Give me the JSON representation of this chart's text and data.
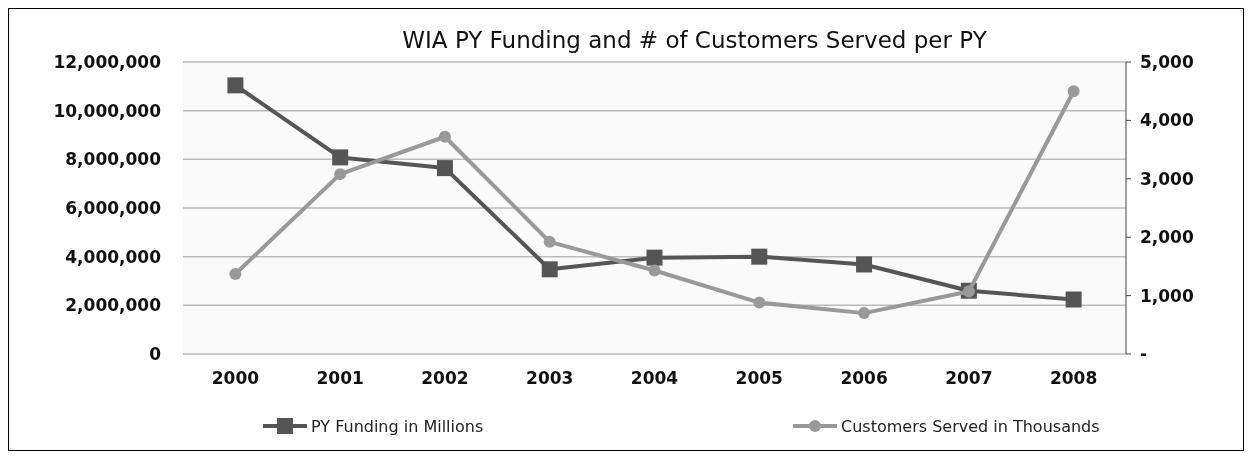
{
  "chart_data": {
    "type": "line",
    "title": "WIA PY Funding and # of Customers Served per PY",
    "categories": [
      "2000",
      "2001",
      "2002",
      "2003",
      "2004",
      "2005",
      "2006",
      "2007",
      "2008"
    ],
    "series": [
      {
        "name": "PY Funding in Millions",
        "color": "#555555",
        "marker": "square",
        "values": [
          11040000,
          8080000,
          7640000,
          3480000,
          3960000,
          4000000,
          3680000,
          2600000,
          2240000
        ]
      },
      {
        "name": "Customers Served in Thousands",
        "color": "#999999",
        "marker": "circle",
        "axis": "y2",
        "values": [
          1370,
          3080,
          3720,
          1920,
          1430,
          880,
          700,
          1070,
          4500
        ]
      }
    ],
    "ylim": [
      0,
      12000000
    ],
    "yticks": [
      {
        "value": 0,
        "label": "0"
      },
      {
        "value": 2000000,
        "label": "2,000,000"
      },
      {
        "value": 4000000,
        "label": "4,000,000"
      },
      {
        "value": 6000000,
        "label": "6,000,000"
      },
      {
        "value": 8000000,
        "label": "8,000,000"
      },
      {
        "value": 10000000,
        "label": "10,000,000"
      },
      {
        "value": 12000000,
        "label": "12,000,000"
      }
    ],
    "y2lim": [
      0,
      5000
    ],
    "y2ticks": [
      {
        "value": 0,
        "label": "-"
      },
      {
        "value": 1000,
        "label": "1,000"
      },
      {
        "value": 2000,
        "label": "2,000"
      },
      {
        "value": 3000,
        "label": "3,000"
      },
      {
        "value": 4000,
        "label": "4,000"
      },
      {
        "value": 5000,
        "label": "5,000"
      }
    ],
    "grid": "y",
    "legend": "bottom"
  }
}
